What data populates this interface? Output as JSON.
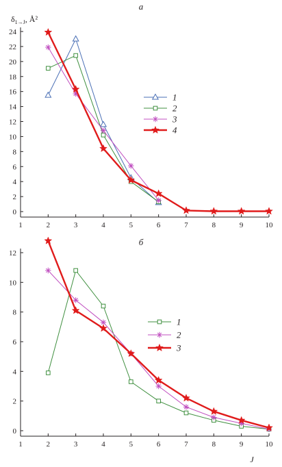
{
  "chart_data": [
    {
      "type": "line",
      "panel_label": "а",
      "ylabel": "δ",
      "ylabel_subscript": "1→J",
      "ylabel_unit": ", Å²",
      "xlabel": "",
      "xlim": [
        1,
        10
      ],
      "ylim": [
        0,
        24
      ],
      "x_ticks": [
        1,
        2,
        3,
        4,
        5,
        6,
        7,
        8,
        9,
        10
      ],
      "y_ticks": [
        0,
        2,
        4,
        6,
        8,
        10,
        12,
        14,
        16,
        18,
        20,
        22,
        24
      ],
      "legend_position": "middle-right",
      "series": [
        {
          "name": "1",
          "color": "#4a6fb5",
          "marker": "triangle",
          "width": 1,
          "x": [
            2,
            3,
            4,
            5,
            6
          ],
          "values": [
            15.5,
            23.0,
            11.6,
            4.5,
            1.2
          ]
        },
        {
          "name": "2",
          "color": "#3f8f3f",
          "marker": "square",
          "width": 1,
          "x": [
            2,
            3,
            4,
            5,
            6
          ],
          "values": [
            19.1,
            20.8,
            10.2,
            4.0,
            1.3
          ]
        },
        {
          "name": "3",
          "color": "#c04fc0",
          "marker": "asterisk",
          "width": 1,
          "x": [
            2,
            3,
            4,
            5,
            6
          ],
          "values": [
            21.9,
            15.7,
            10.8,
            6.1,
            1.5
          ]
        },
        {
          "name": "4",
          "color": "#e01b1b",
          "marker": "star",
          "width": 2.4,
          "x": [
            2,
            3,
            4,
            5,
            6,
            7,
            8,
            9,
            10
          ],
          "values": [
            23.9,
            16.3,
            8.4,
            4.2,
            2.4,
            0.15,
            0.05,
            0.05,
            0.05
          ]
        }
      ]
    },
    {
      "type": "line",
      "panel_label": "б",
      "ylabel": "",
      "xlabel": "J",
      "xlim": [
        1,
        10
      ],
      "ylim": [
        0,
        12
      ],
      "x_ticks": [
        1,
        2,
        3,
        4,
        5,
        6,
        7,
        8,
        9,
        10
      ],
      "y_ticks": [
        0,
        2,
        4,
        6,
        8,
        10,
        12
      ],
      "legend_position": "middle-right",
      "series": [
        {
          "name": "1",
          "color": "#3f8f3f",
          "marker": "square",
          "width": 1,
          "x": [
            2,
            3,
            4,
            5,
            6,
            7,
            8,
            9,
            10
          ],
          "values": [
            3.9,
            10.8,
            8.4,
            3.3,
            2.0,
            1.2,
            0.7,
            0.3,
            0.1
          ]
        },
        {
          "name": "2",
          "color": "#c04fc0",
          "marker": "asterisk",
          "width": 1,
          "x": [
            2,
            3,
            4,
            5,
            6,
            7,
            8,
            9,
            10
          ],
          "values": [
            10.8,
            8.8,
            7.3,
            5.2,
            3.0,
            1.6,
            0.9,
            0.5,
            0.1
          ]
        },
        {
          "name": "3",
          "color": "#e01b1b",
          "marker": "star",
          "width": 2.4,
          "x": [
            2,
            3,
            4,
            5,
            6,
            7,
            8,
            9,
            10
          ],
          "values": [
            12.8,
            8.1,
            6.9,
            5.2,
            3.4,
            2.2,
            1.3,
            0.7,
            0.2
          ]
        }
      ]
    }
  ]
}
